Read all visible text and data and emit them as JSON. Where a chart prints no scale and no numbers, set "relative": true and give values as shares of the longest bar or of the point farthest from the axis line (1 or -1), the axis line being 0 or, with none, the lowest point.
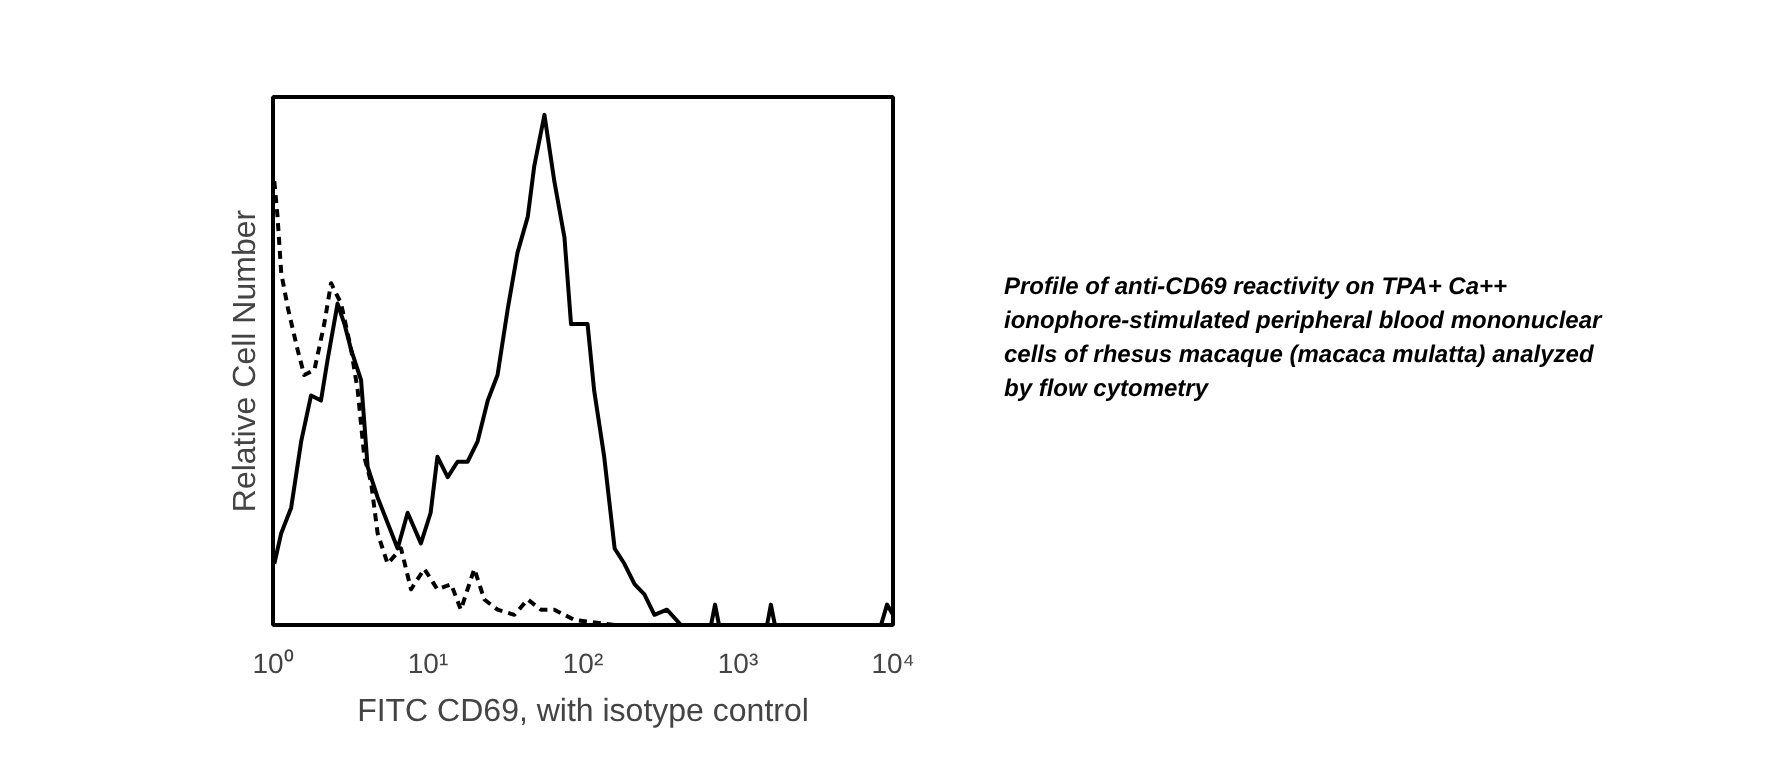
{
  "chart_data": {
    "type": "line",
    "xlabel": "FITC CD69, with isotype control",
    "ylabel": "Relative Cell Number",
    "relative": true,
    "log": "x",
    "grid": false,
    "marker": "none",
    "xlim": [
      1,
      10000
    ],
    "xticks": [
      {
        "value": 1,
        "label": "10⁰"
      },
      {
        "value": 10,
        "label": "10¹"
      },
      {
        "value": 100,
        "label": "10²"
      },
      {
        "value": 1000,
        "label": "10³"
      },
      {
        "value": 10000,
        "label": "10⁴"
      }
    ],
    "annotations": [
      "Profile of anti-CD69 reactivity on TPA+ Ca++ ionophore-stimulated peripheral blood mononuclear cells of rhesus macaque (macaca mulatta) analyzed by flow cytometry"
    ],
    "series": [
      {
        "color": "#000000",
        "line_style": "solid",
        "x": [
          1.02,
          1.13,
          1.31,
          1.52,
          1.76,
          2.04,
          2.25,
          2.61,
          2.89,
          3.19,
          3.7,
          4.08,
          4.73,
          5.49,
          6.37,
          7.39,
          9.0,
          10.4,
          11.5,
          13.4,
          15.5,
          18.0,
          20.9,
          24.3,
          28.1,
          32.7,
          37.8,
          44.0,
          48.5,
          56.4,
          65.3,
          75.9,
          83.7,
          107,
          118,
          137,
          160,
          185,
          215,
          249,
          289,
          348,
          429,
          670,
          711,
          754,
          1540,
          1630,
          1730,
          8370,
          9150,
          10000
        ],
        "values": [
          0.12,
          0.18,
          0.23,
          0.36,
          0.45,
          0.44,
          0.52,
          0.63,
          0.59,
          0.54,
          0.48,
          0.31,
          0.25,
          0.2,
          0.15,
          0.22,
          0.16,
          0.22,
          0.33,
          0.29,
          0.32,
          0.32,
          0.36,
          0.44,
          0.49,
          0.62,
          0.73,
          0.8,
          0.9,
          1.0,
          0.87,
          0.76,
          0.59,
          0.59,
          0.46,
          0.33,
          0.15,
          0.12,
          0.08,
          0.06,
          0.02,
          0.03,
          0,
          0,
          0.04,
          0,
          0,
          0.04,
          0,
          0,
          0.04,
          0.02
        ]
      },
      {
        "color": "#000000",
        "line_style": "dashed",
        "x": [
          1.02,
          1.07,
          1.13,
          1.25,
          1.44,
          1.59,
          1.85,
          2.14,
          2.37,
          2.75,
          3.19,
          3.52,
          3.88,
          4.29,
          4.73,
          5.49,
          6.7,
          7.77,
          9.47,
          11.5,
          14.1,
          16.3,
          19.9,
          23.1,
          28.1,
          36.1,
          44.0,
          53.6,
          65.3,
          88,
          160,
          10000
        ],
        "values": [
          0.87,
          0.8,
          0.69,
          0.62,
          0.54,
          0.49,
          0.5,
          0.59,
          0.67,
          0.63,
          0.54,
          0.46,
          0.33,
          0.28,
          0.18,
          0.12,
          0.15,
          0.07,
          0.11,
          0.07,
          0.08,
          0.03,
          0.11,
          0.05,
          0.03,
          0.02,
          0.05,
          0.03,
          0.03,
          0.01,
          0,
          0
        ]
      }
    ]
  }
}
